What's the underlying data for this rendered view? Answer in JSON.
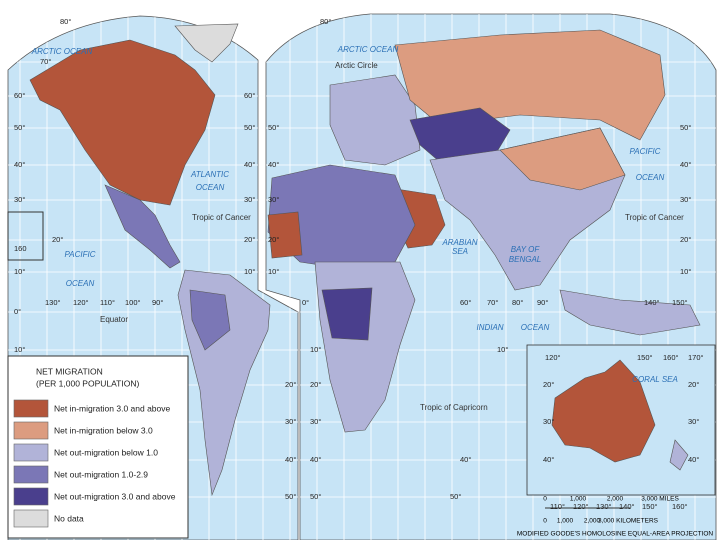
{
  "map": {
    "legend": {
      "title": "NET MIGRATION",
      "subtitle": "(PER 1,000 POPULATION)",
      "items": [
        {
          "label": "Net in-migration 3.0 and above",
          "color": "#b3553a"
        },
        {
          "label": "Net in-migration below 3.0",
          "color": "#dc9c80"
        },
        {
          "label": "Net out-migration below 1.0",
          "color": "#b1b3d8"
        },
        {
          "label": "Net out-migration 1.0-2.9",
          "color": "#7b77b6"
        },
        {
          "label": "Net out-migration 3.0 and above",
          "color": "#4a3f8d"
        },
        {
          "label": "No data",
          "color": "#dcdcdc"
        }
      ]
    },
    "ocean_labels": [
      "ARCTIC OCEAN",
      "ARCTIC OCEAN",
      "ATLANTIC",
      "OCEAN",
      "PACIFIC",
      "OCEAN",
      "PACIFIC",
      "OCEAN",
      "INDIAN",
      "OCEAN",
      "ARABIAN",
      "SEA",
      "BAY OF",
      "BENGAL",
      "CORAL SEA"
    ],
    "line_labels": [
      "Arctic Circle",
      "Tropic of Cancer",
      "Tropic of Cancer",
      "Equator",
      "Tropic of Capricorn"
    ],
    "coordinate_labels": [
      "80°",
      "70°",
      "60°",
      "50°",
      "40°",
      "30°",
      "20°",
      "10°",
      "0°",
      "10°",
      "160",
      "60°",
      "50°",
      "40°",
      "30°",
      "20°",
      "10°",
      "130°",
      "120°",
      "110°",
      "100°",
      "90°",
      "80°",
      "50°",
      "40°",
      "30°",
      "20°",
      "10°",
      "0°",
      "60°",
      "70°",
      "80°",
      "90°",
      "140°",
      "150°",
      "50°",
      "40°",
      "30°",
      "20°",
      "10°",
      "10°",
      "20°",
      "30°",
      "40°",
      "50°",
      "20°",
      "30°",
      "40°",
      "50°",
      "10°",
      "40°",
      "50°",
      "120°",
      "150°",
      "160°",
      "170°",
      "20°",
      "30°",
      "40°",
      "20°",
      "30°",
      "40°",
      "110°",
      "120°",
      "130°",
      "140°",
      "150°",
      "160°"
    ],
    "scale": {
      "miles": [
        "0",
        "1,000",
        "2,000",
        "3,000 MILES"
      ],
      "kilometers": [
        "0",
        "1,000",
        "2,000",
        "3,000 KILOMETERS"
      ]
    },
    "projection": "MODIFIED GOODE'S HOMOLOSINE EQUAL-AREA PROJECTION"
  }
}
